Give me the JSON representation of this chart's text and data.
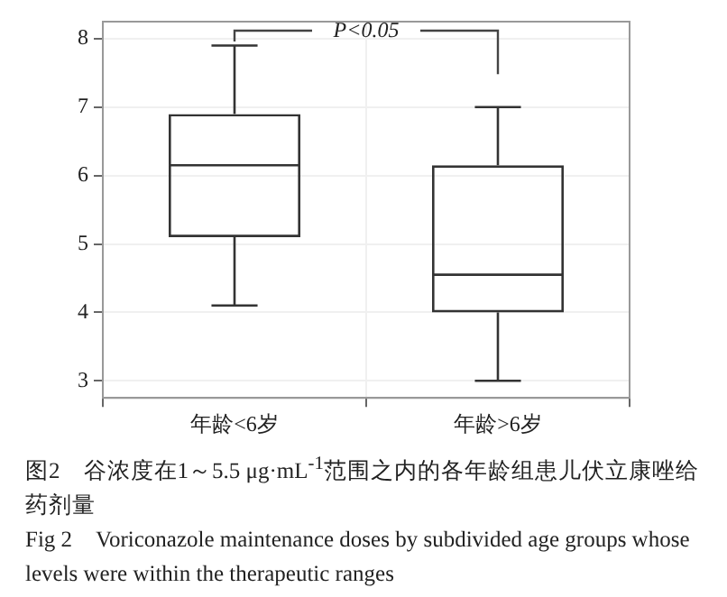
{
  "chart_data": {
    "type": "box",
    "categories": [
      "年龄<6岁",
      "年龄>6岁"
    ],
    "boxes": [
      {
        "low": 4.1,
        "q1": 5.1,
        "median": 6.15,
        "q3": 6.9,
        "high": 7.9
      },
      {
        "low": 3.0,
        "q1": 4.0,
        "median": 4.55,
        "q3": 6.15,
        "high": 7.0
      }
    ],
    "color": "#333333",
    "ylim": [
      2.75,
      8.25
    ],
    "yticks": [
      3,
      4,
      5,
      6,
      7,
      8
    ],
    "grid": true,
    "annotations": [
      {
        "text": "P<0.05",
        "x": "年龄<6岁",
        "y": 7.9
      },
      "图2　谷浓度在1～5.5 μg·mL$^{-1}$范围之内的各年龄组患儿伏立康唑给药剂量",
      "Fig 2　Voriconazole maintenance doses by subdivided age groups whose levels were within the therapeutic ranges"
    ]
  }
}
